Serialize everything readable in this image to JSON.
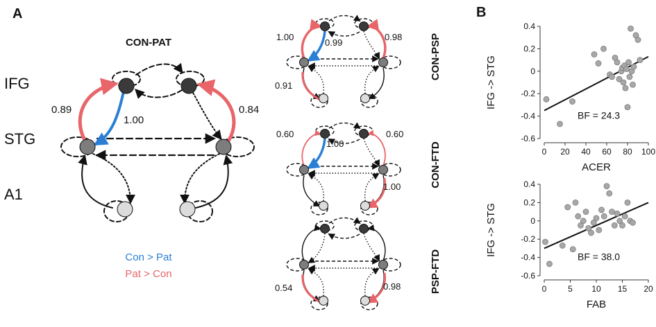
{
  "panels": {
    "a": "A",
    "b": "B"
  },
  "regions": {
    "ifg": "IFG",
    "stg": "STG",
    "a1": "A1"
  },
  "main": {
    "title": "CON-PAT",
    "coef_left": "0.89",
    "coef_center": "1.00",
    "coef_right": "0.84",
    "legend_con": "Con > Pat",
    "legend_pat": "Pat > Con"
  },
  "small": [
    {
      "title": "CON-PSP",
      "labels": [
        "1.00",
        "0.99",
        "0.98",
        "0.91"
      ]
    },
    {
      "title": "CON-FTD",
      "labels": [
        "0.60",
        "1.00",
        "0.60",
        "1.00"
      ]
    },
    {
      "title": "PSP-FTD",
      "labels": [
        "0.54",
        "0.98"
      ]
    }
  ],
  "colors": {
    "blue": "#2a7fd4",
    "red": "#e8656a",
    "dark_node": "#3a3a3a",
    "mid_node": "#7d7d7d",
    "light_node": "#dcdcdc"
  },
  "chart_data": [
    {
      "type": "scatter",
      "xlabel": "ACER",
      "ylabel": "IFG -> STG",
      "xlim": [
        0,
        100
      ],
      "ylim": [
        -0.6,
        0.4
      ],
      "xticks": [
        "0",
        "20",
        "40",
        "60",
        "80",
        "100"
      ],
      "yticks": [
        "0.4",
        "0.2",
        "0",
        "-0.2",
        "-0.4",
        "-0.6"
      ],
      "annotation": "BF = 24.3",
      "x": [
        2,
        15,
        27,
        48,
        52,
        57,
        63,
        65,
        68,
        70,
        72,
        74,
        75,
        76,
        77,
        78,
        79,
        80,
        81,
        82,
        83,
        84,
        85,
        86,
        88,
        90,
        92
      ],
      "y": [
        -0.25,
        -0.47,
        -0.27,
        0.15,
        0.07,
        0.2,
        -0.03,
        -0.05,
        0.12,
        0.08,
        -0.07,
        0.0,
        0.03,
        -0.1,
        0.05,
        -0.15,
        0.02,
        -0.32,
        0.08,
        -0.05,
        0.38,
        0.0,
        -0.12,
        0.04,
        0.32,
        0.28,
        0.1
      ],
      "fit": [
        [
          0,
          -0.35
        ],
        [
          100,
          0.13
        ]
      ],
      "grid": false
    },
    {
      "type": "scatter",
      "xlabel": "FAB",
      "ylabel": "IFG -> STG",
      "xlim": [
        0,
        20
      ],
      "ylim": [
        -0.6,
        0.4
      ],
      "xticks": [
        "0",
        "5",
        "10",
        "15",
        "20"
      ],
      "yticks": [
        "0.4",
        "0.2",
        "0",
        "-0.2",
        "-0.4",
        "-0.6"
      ],
      "annotation": "BF = 38.0",
      "x": [
        0.2,
        1,
        3.5,
        4.5,
        5.5,
        6,
        6.5,
        7,
        7.5,
        8,
        8.5,
        9,
        9.5,
        10,
        10.5,
        11,
        11.5,
        12,
        12.5,
        13,
        13.5,
        14,
        14.5,
        15,
        15.5,
        16,
        16.5,
        17
      ],
      "y": [
        -0.23,
        -0.47,
        -0.27,
        0.15,
        -0.31,
        0.2,
        0.05,
        -0.05,
        0.0,
        0.1,
        -0.08,
        -0.13,
        -0.02,
        0.03,
        -0.1,
        0.12,
        0.05,
        0.38,
        0.3,
        0.1,
        -0.05,
        0.08,
        0.0,
        -0.05,
        0.05,
        0.2,
        0.0,
        -0.02
      ],
      "fit": [
        [
          0,
          -0.3
        ],
        [
          20,
          0.2
        ]
      ],
      "grid": false
    }
  ]
}
